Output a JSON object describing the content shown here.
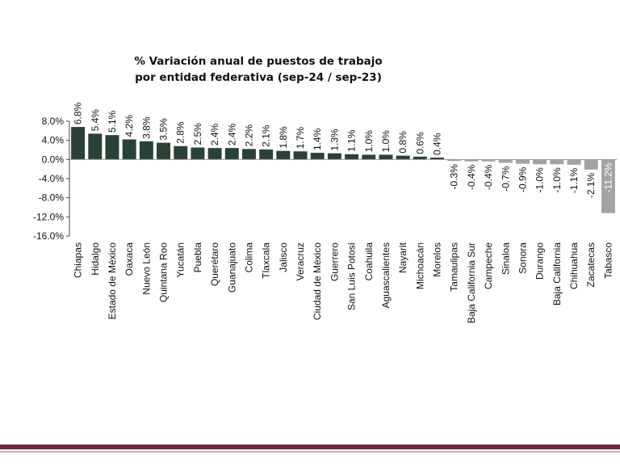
{
  "chart_data": {
    "type": "bar",
    "title_line1": "% Variación anual de puestos de trabajo",
    "title_line2": "por entidad federativa (sep-24 / sep-23)",
    "xlabel": "",
    "ylabel": "",
    "ylim": [
      -16.0,
      8.0
    ],
    "yticks": [
      "8.0%",
      "4.0%",
      "0.0%",
      "-4.0%",
      "-8.0%",
      "-12.0%",
      "-16.0%"
    ],
    "grid": false,
    "legend": "none",
    "categories": [
      "Chiapas",
      "Hidalgo",
      "Estado de México",
      "Oaxaca",
      "Nuevo León",
      "Quintana Roo",
      "Yucatán",
      "Puebla",
      "Querétaro",
      "Guanajuato",
      "Colima",
      "Tlaxcala",
      "Jalisco",
      "Veracruz",
      "Ciudad de México",
      "Guerrero",
      "San Luis Potosí",
      "Coahuila",
      "Aguascalientes",
      "Nayarit",
      "Michoacán",
      "Morelos",
      "Tamaulipas",
      "Baja California Sur",
      "Campeche",
      "Sinaloa",
      "Sonora",
      "Durango",
      "Baja California",
      "Chihuahua",
      "Zacatecas",
      "Tabasco"
    ],
    "values": [
      6.8,
      5.4,
      5.1,
      4.2,
      3.8,
      3.5,
      2.8,
      2.5,
      2.4,
      2.4,
      2.2,
      2.1,
      1.8,
      1.7,
      1.4,
      1.3,
      1.1,
      1.0,
      1.0,
      0.8,
      0.6,
      0.4,
      -0.3,
      -0.4,
      -0.4,
      -0.7,
      -0.9,
      -1.0,
      -1.0,
      -1.1,
      -2.1,
      -11.2
    ],
    "labels": [
      "6.8%",
      "5.4%",
      "5.1%",
      "4.2%",
      "3.8%",
      "3.5%",
      "2.8%",
      "2.5%",
      "2.4%",
      "2.4%",
      "2.2%",
      "2.1%",
      "1.8%",
      "1.7%",
      "1.4%",
      "1.3%",
      "1.1%",
      "1.0%",
      "1.0%",
      "0.8%",
      "0.6%",
      "0.4%",
      "-0.3%",
      "-0.4%",
      "-0.4%",
      "-0.7%",
      "-0.9%",
      "-1.0%",
      "-1.0%",
      "-1.1%",
      "-2.1%",
      "-11.2%"
    ],
    "colors": {
      "positive": "#2a4236",
      "negative": "#a3a3a3",
      "axis": "#444444",
      "text": "#111111",
      "inside_label": "#ffffff"
    }
  }
}
